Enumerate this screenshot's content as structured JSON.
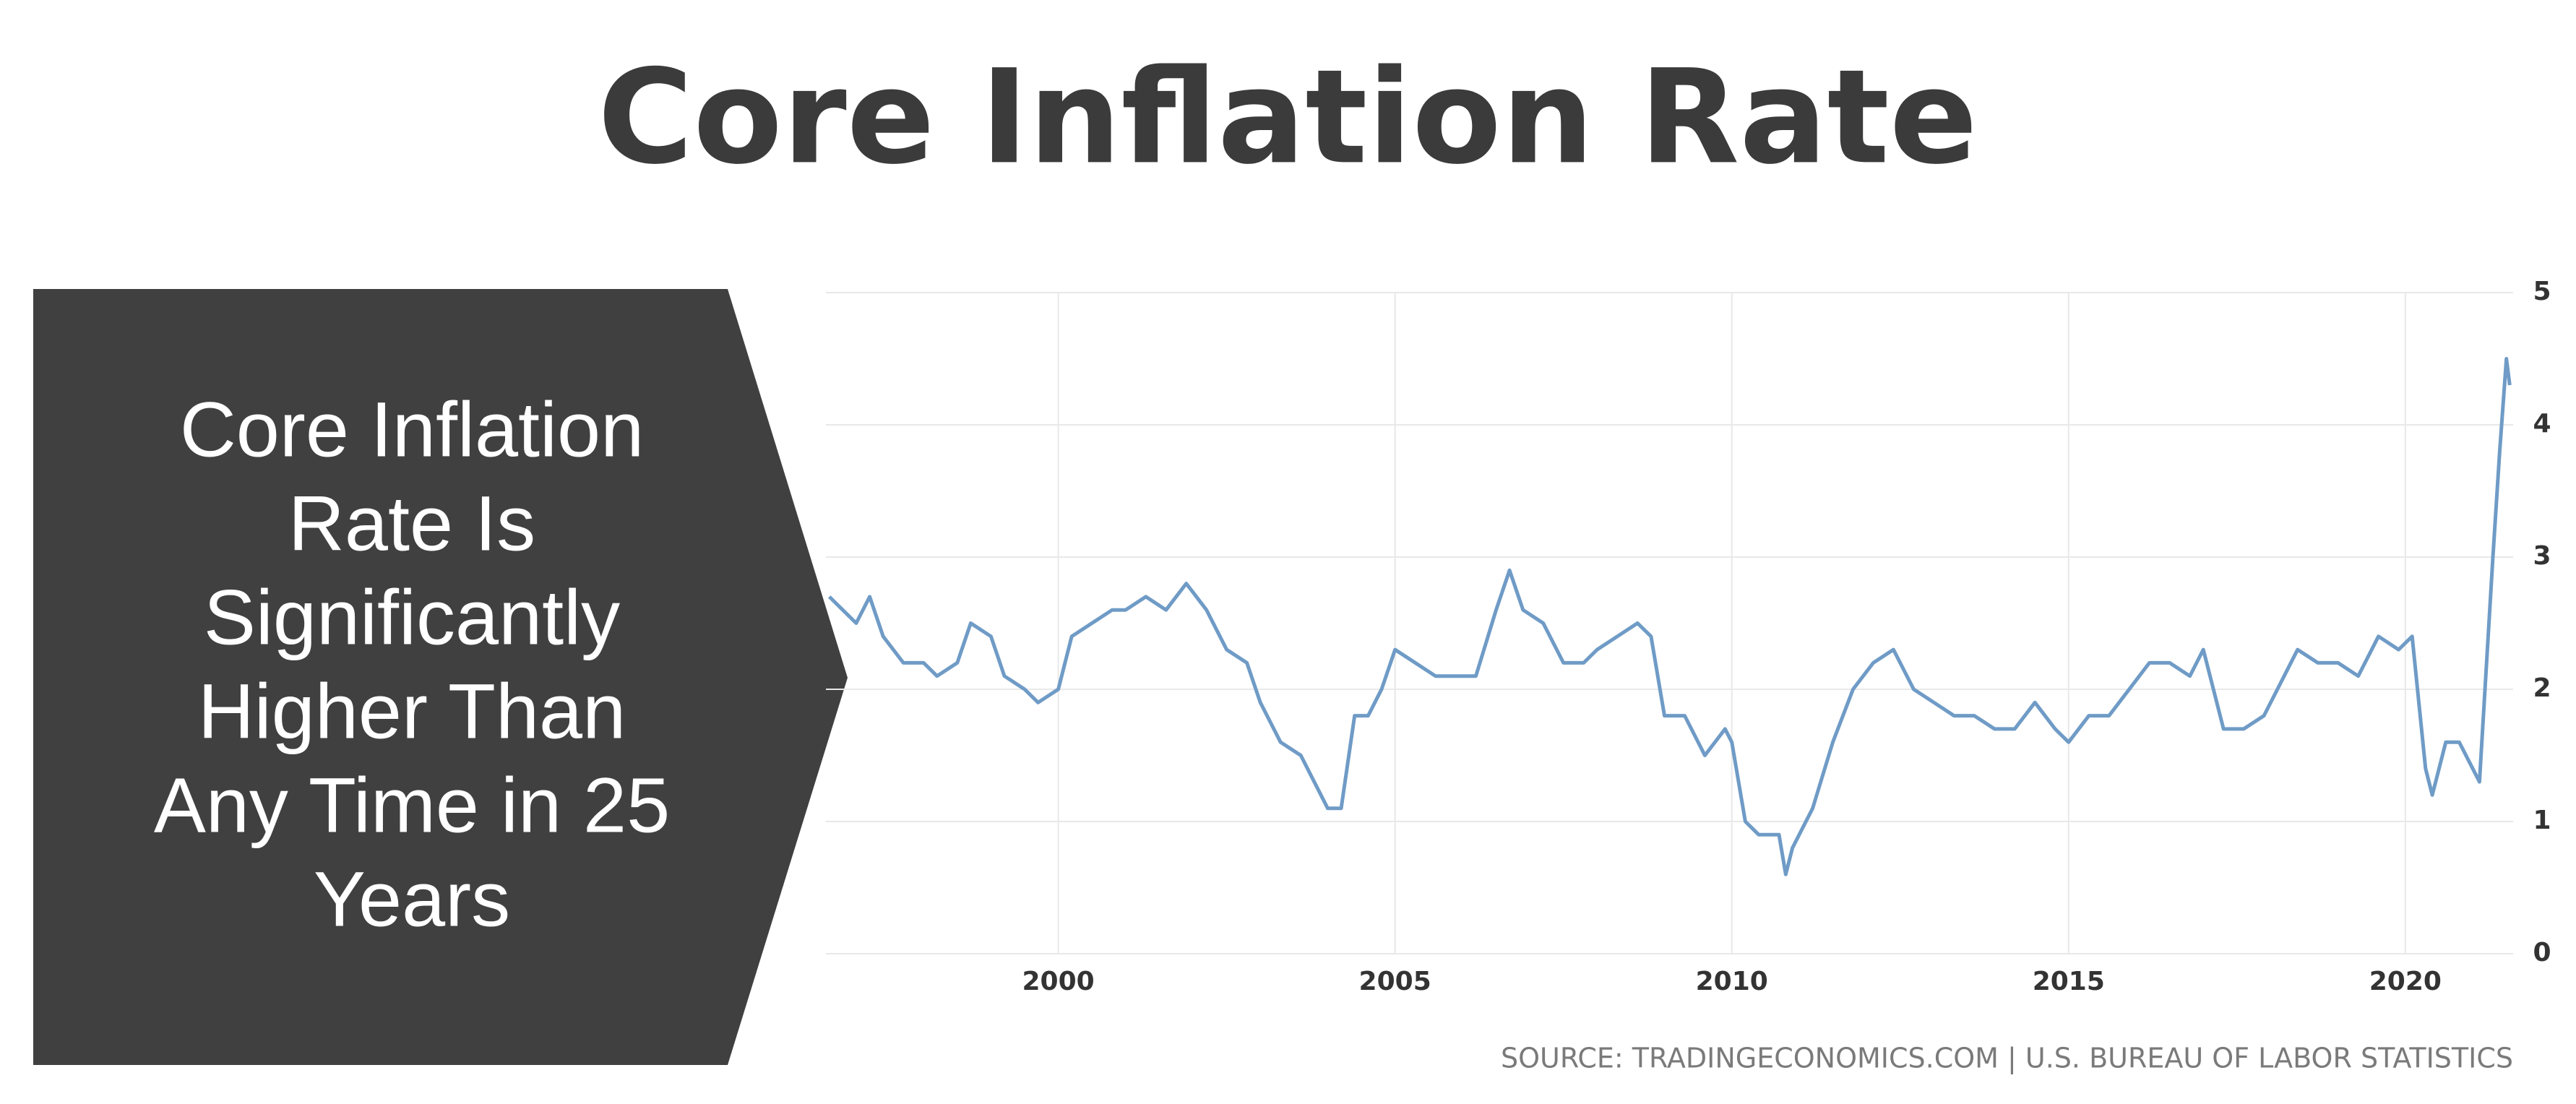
{
  "title": "Core Inflation Rate",
  "callout": {
    "lines": [
      "Core Inflation",
      "Rate Is",
      "Significantly",
      "Higher Than",
      "Any Time in 25",
      "Years"
    ]
  },
  "chart_data": {
    "type": "line",
    "source": "SOURCE: TRADINGECONOMICS.COM | U.S. BUREAU OF LABOR STATISTICS",
    "x": [
      1996.6,
      1996.8,
      1997.0,
      1997.2,
      1997.4,
      1997.7,
      1998.0,
      1998.2,
      1998.5,
      1998.7,
      1999.0,
      1999.2,
      1999.5,
      1999.7,
      2000.0,
      2000.2,
      2000.5,
      2000.8,
      2001.0,
      2001.3,
      2001.6,
      2001.9,
      2002.2,
      2002.5,
      2002.8,
      2003.0,
      2003.3,
      2003.6,
      2003.9,
      2004.0,
      2004.2,
      2004.4,
      2004.6,
      2004.8,
      2005.0,
      2005.3,
      2005.6,
      2005.9,
      2006.2,
      2006.5,
      2006.7,
      2006.9,
      2007.2,
      2007.5,
      2007.8,
      2008.0,
      2008.3,
      2008.6,
      2008.8,
      2009.0,
      2009.3,
      2009.6,
      2009.9,
      2010.0,
      2010.2,
      2010.4,
      2010.7,
      2010.8,
      2010.9,
      2011.2,
      2011.5,
      2011.8,
      2012.1,
      2012.4,
      2012.7,
      2013.0,
      2013.3,
      2013.6,
      2013.9,
      2014.2,
      2014.5,
      2014.8,
      2015.0,
      2015.3,
      2015.6,
      2015.9,
      2016.2,
      2016.5,
      2016.8,
      2017.0,
      2017.3,
      2017.6,
      2017.9,
      2018.2,
      2018.4,
      2018.7,
      2019.0,
      2019.3,
      2019.6,
      2019.9,
      2020.1,
      2020.3,
      2020.4,
      2020.6,
      2020.8,
      2021.0,
      2021.1,
      2021.3,
      2021.4,
      2021.5,
      2021.55
    ],
    "series": [
      {
        "name": "Core Inflation Rate",
        "color": "#6f9bc6",
        "values": [
          2.7,
          2.6,
          2.5,
          2.7,
          2.4,
          2.2,
          2.2,
          2.1,
          2.2,
          2.5,
          2.4,
          2.1,
          2.0,
          1.9,
          2.0,
          2.4,
          2.5,
          2.6,
          2.6,
          2.7,
          2.6,
          2.8,
          2.6,
          2.3,
          2.2,
          1.9,
          1.6,
          1.5,
          1.2,
          1.1,
          1.1,
          1.8,
          1.8,
          2.0,
          2.3,
          2.2,
          2.1,
          2.1,
          2.1,
          2.6,
          2.9,
          2.6,
          2.5,
          2.2,
          2.2,
          2.3,
          2.4,
          2.5,
          2.4,
          1.8,
          1.8,
          1.5,
          1.7,
          1.6,
          1.0,
          0.9,
          0.9,
          0.6,
          0.8,
          1.1,
          1.6,
          2.0,
          2.2,
          2.3,
          2.0,
          1.9,
          1.8,
          1.8,
          1.7,
          1.7,
          1.9,
          1.7,
          1.6,
          1.8,
          1.8,
          2.0,
          2.2,
          2.2,
          2.1,
          2.3,
          1.7,
          1.7,
          1.8,
          2.1,
          2.3,
          2.2,
          2.2,
          2.1,
          2.4,
          2.3,
          2.4,
          1.4,
          1.2,
          1.6,
          1.6,
          1.4,
          1.3,
          3.0,
          3.8,
          4.5,
          4.3
        ]
      }
    ],
    "xlim": [
      1996.55,
      2021.6
    ],
    "xticks": [
      2000,
      2005,
      2010,
      2015,
      2020
    ],
    "ylim": [
      0,
      5
    ],
    "yticks": [
      0,
      1,
      2,
      3,
      4,
      5
    ],
    "grid": true
  }
}
